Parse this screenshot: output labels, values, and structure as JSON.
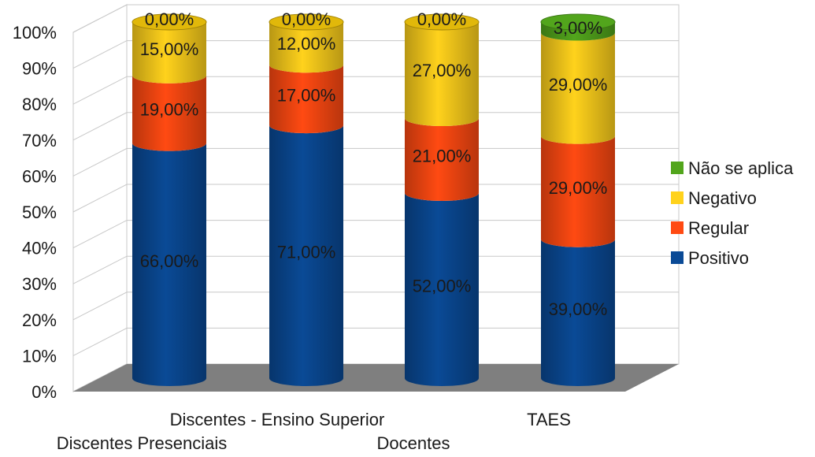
{
  "chart_data": {
    "type": "bar",
    "stacked": true,
    "style": "3d-cylinder-percent",
    "categories": [
      "Discentes Presenciais",
      "Discentes - Ensino Superior",
      "Docentes",
      "TAES"
    ],
    "series": [
      {
        "name": "Positivo",
        "color": "#0a4a96",
        "values": [
          66,
          71,
          52,
          39
        ],
        "labels": [
          "66,00%",
          "71,00%",
          "52,00%",
          "39,00%"
        ]
      },
      {
        "name": "Regular",
        "color": "#ff4a12",
        "values": [
          19,
          17,
          21,
          29
        ],
        "labels": [
          "19,00%",
          "17,00%",
          "21,00%",
          "29,00%"
        ]
      },
      {
        "name": "Negativo",
        "color": "#ffd21c",
        "values": [
          15,
          12,
          27,
          29
        ],
        "labels": [
          "15,00%",
          "12,00%",
          "27,00%",
          "29,00%"
        ]
      },
      {
        "name": "Não se aplica",
        "color": "#52a51c",
        "values": [
          0,
          0,
          0,
          3
        ],
        "labels": [
          "0,00%",
          "0,00%",
          "0,00%",
          "3,00%"
        ]
      }
    ],
    "y_ticks": [
      "0%",
      "10%",
      "20%",
      "30%",
      "40%",
      "50%",
      "60%",
      "70%",
      "80%",
      "90%",
      "100%"
    ],
    "ylim": [
      0,
      100
    ],
    "grid": true,
    "legend_position": "right",
    "legend_order": [
      "Não se aplica",
      "Negativo",
      "Regular",
      "Positivo"
    ],
    "title": "",
    "xlabel": "",
    "ylabel": ""
  }
}
